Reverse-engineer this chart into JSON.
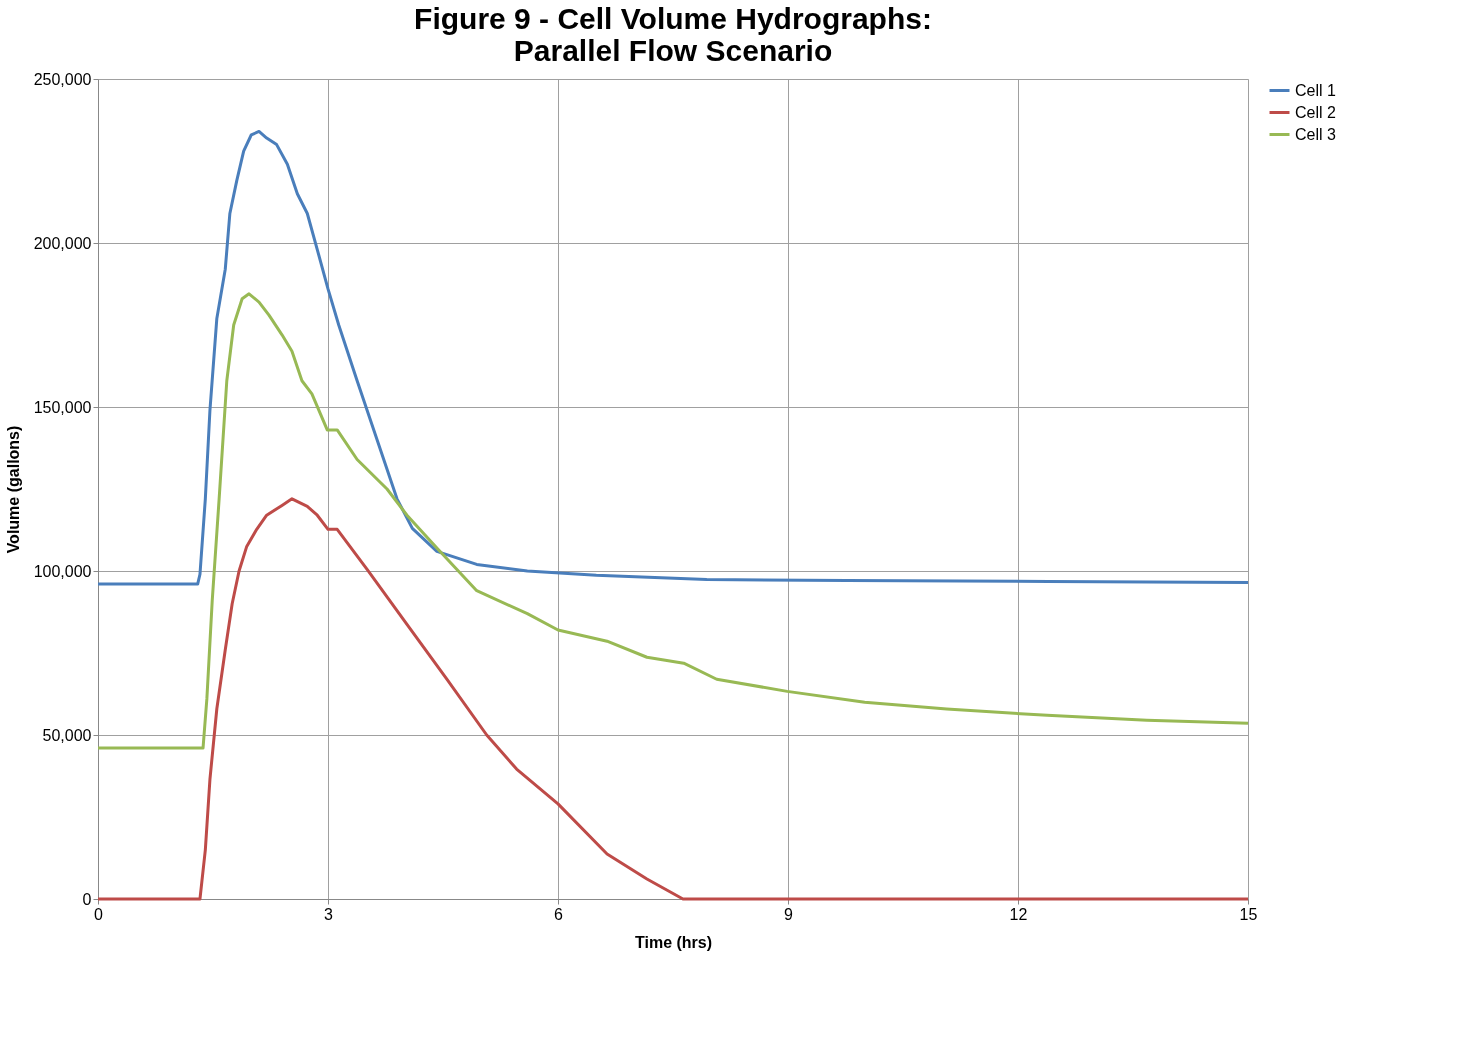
{
  "chart_data": {
    "type": "line",
    "title": "Figure 9 - Cell Volume Hydrographs:\nParallel Flow Scenario",
    "xlabel": "Time (hrs)",
    "ylabel": "Volume (gallons)",
    "xlim": [
      0,
      15
    ],
    "xticks": [
      0,
      3,
      6,
      9,
      12,
      15
    ],
    "ylim": [
      0,
      250000
    ],
    "yticks": [
      0,
      {
        "value": 50000,
        "label": "50,000"
      },
      {
        "value": 100000,
        "label": "100,000"
      },
      {
        "value": 150000,
        "label": "150,000"
      },
      {
        "value": 200000,
        "label": "200,000"
      },
      {
        "value": 250000,
        "label": "250,000"
      }
    ],
    "grid": true,
    "legend": "right",
    "marker": "none",
    "line_style": "solid",
    "series": [
      {
        "name": "Cell 1",
        "color": "#4a7ebb",
        "x": [
          0,
          1.3,
          1.33,
          1.4,
          1.46,
          1.55,
          1.66,
          1.72,
          1.81,
          1.9,
          2.0,
          2.1,
          2.2,
          2.33,
          2.47,
          2.6,
          2.73,
          2.86,
          3.0,
          3.14,
          3.38,
          3.64,
          3.9,
          4.1,
          4.42,
          4.94,
          5.6,
          6.5,
          7.94,
          9.77,
          12.4,
          15
        ],
        "values": [
          96000,
          96000,
          99000,
          122000,
          149000,
          177000,
          192000,
          209000,
          219000,
          228000,
          233000,
          234000,
          232000,
          230000,
          224000,
          215000,
          209000,
          198000,
          186000,
          175000,
          158000,
          140000,
          122000,
          113000,
          106000,
          102000,
          100000,
          98700,
          97400,
          97100,
          96800,
          96500
        ]
      },
      {
        "name": "Cell 2",
        "color": "#be4b48",
        "x": [
          0,
          1.33,
          1.4,
          1.46,
          1.55,
          1.66,
          1.75,
          1.84,
          1.94,
          2.07,
          2.2,
          2.4,
          2.53,
          2.73,
          2.86,
          3.0,
          3.12,
          3.51,
          4.03,
          4.55,
          5.07,
          5.46,
          6.0,
          6.64,
          7.16,
          7.63,
          15
        ],
        "values": [
          0,
          0,
          15000,
          36500,
          58000,
          76000,
          90000,
          100000,
          107500,
          112700,
          117000,
          120000,
          122000,
          119700,
          117000,
          112700,
          112700,
          100500,
          83700,
          67000,
          50000,
          39600,
          29000,
          13700,
          6100,
          0,
          0
        ]
      },
      {
        "name": "Cell 3",
        "color": "#98b954",
        "x": [
          0,
          1.37,
          1.42,
          1.49,
          1.58,
          1.68,
          1.77,
          1.88,
          1.97,
          2.1,
          2.23,
          2.4,
          2.53,
          2.66,
          2.79,
          2.99,
          3.12,
          3.38,
          3.77,
          4.03,
          4.42,
          4.94,
          5.6,
          6.0,
          6.64,
          7.16,
          7.64,
          8.07,
          8.99,
          10.0,
          11.07,
          12.38,
          13.68,
          15
        ],
        "values": [
          46000,
          46000,
          61000,
          91000,
          122000,
          158000,
          175000,
          183000,
          184500,
          182000,
          178000,
          172000,
          167000,
          158000,
          154000,
          143000,
          143000,
          134000,
          125000,
          117000,
          107000,
          94000,
          87000,
          82000,
          78600,
          73700,
          71900,
          67000,
          63300,
          60000,
          57900,
          56000,
          54500,
          53600
        ]
      }
    ]
  }
}
